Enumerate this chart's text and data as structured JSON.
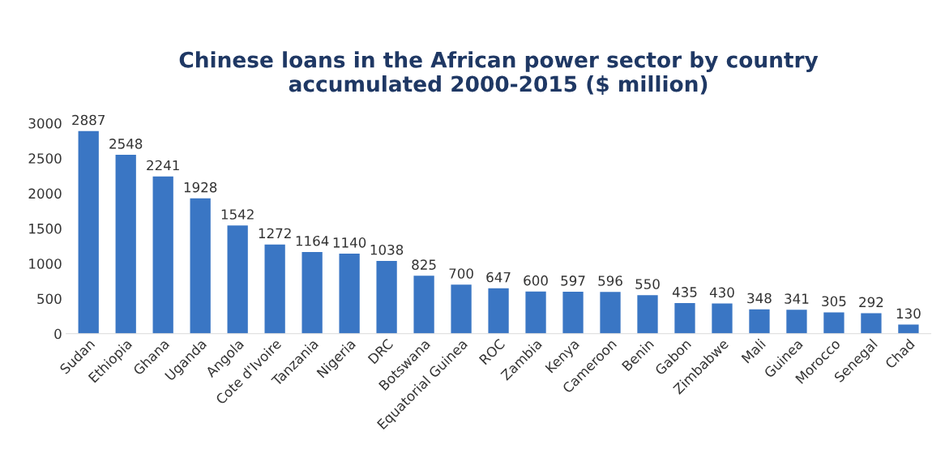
{
  "chart_data": {
    "type": "bar",
    "title": "Chinese loans in the African power sector by country\naccumulated 2000-2015 ($ million)",
    "categories": [
      "Sudan",
      "Ethiopia",
      "Ghana",
      "Uganda",
      "Angola",
      "Cote d'Ivoire",
      "Tanzania",
      "Nigeria",
      "DRC",
      "Botswana",
      "Equatorial Guinea",
      "ROC",
      "Zambia",
      "Kenya",
      "Cameroon",
      "Benin",
      "Gabon",
      "Zimbabwe",
      "Mali",
      "Guinea",
      "Morocco",
      "Senegal",
      "Chad"
    ],
    "values": [
      2887,
      2548,
      2241,
      1928,
      1542,
      1272,
      1164,
      1140,
      1038,
      825,
      700,
      647,
      600,
      597,
      596,
      550,
      435,
      430,
      348,
      341,
      305,
      292,
      130
    ],
    "color": "#3a76c4",
    "ylim": [
      0,
      3000
    ],
    "yticks": [
      0,
      500,
      1000,
      1500,
      2000,
      2500,
      3000
    ],
    "grid": false,
    "data_labels": true
  }
}
